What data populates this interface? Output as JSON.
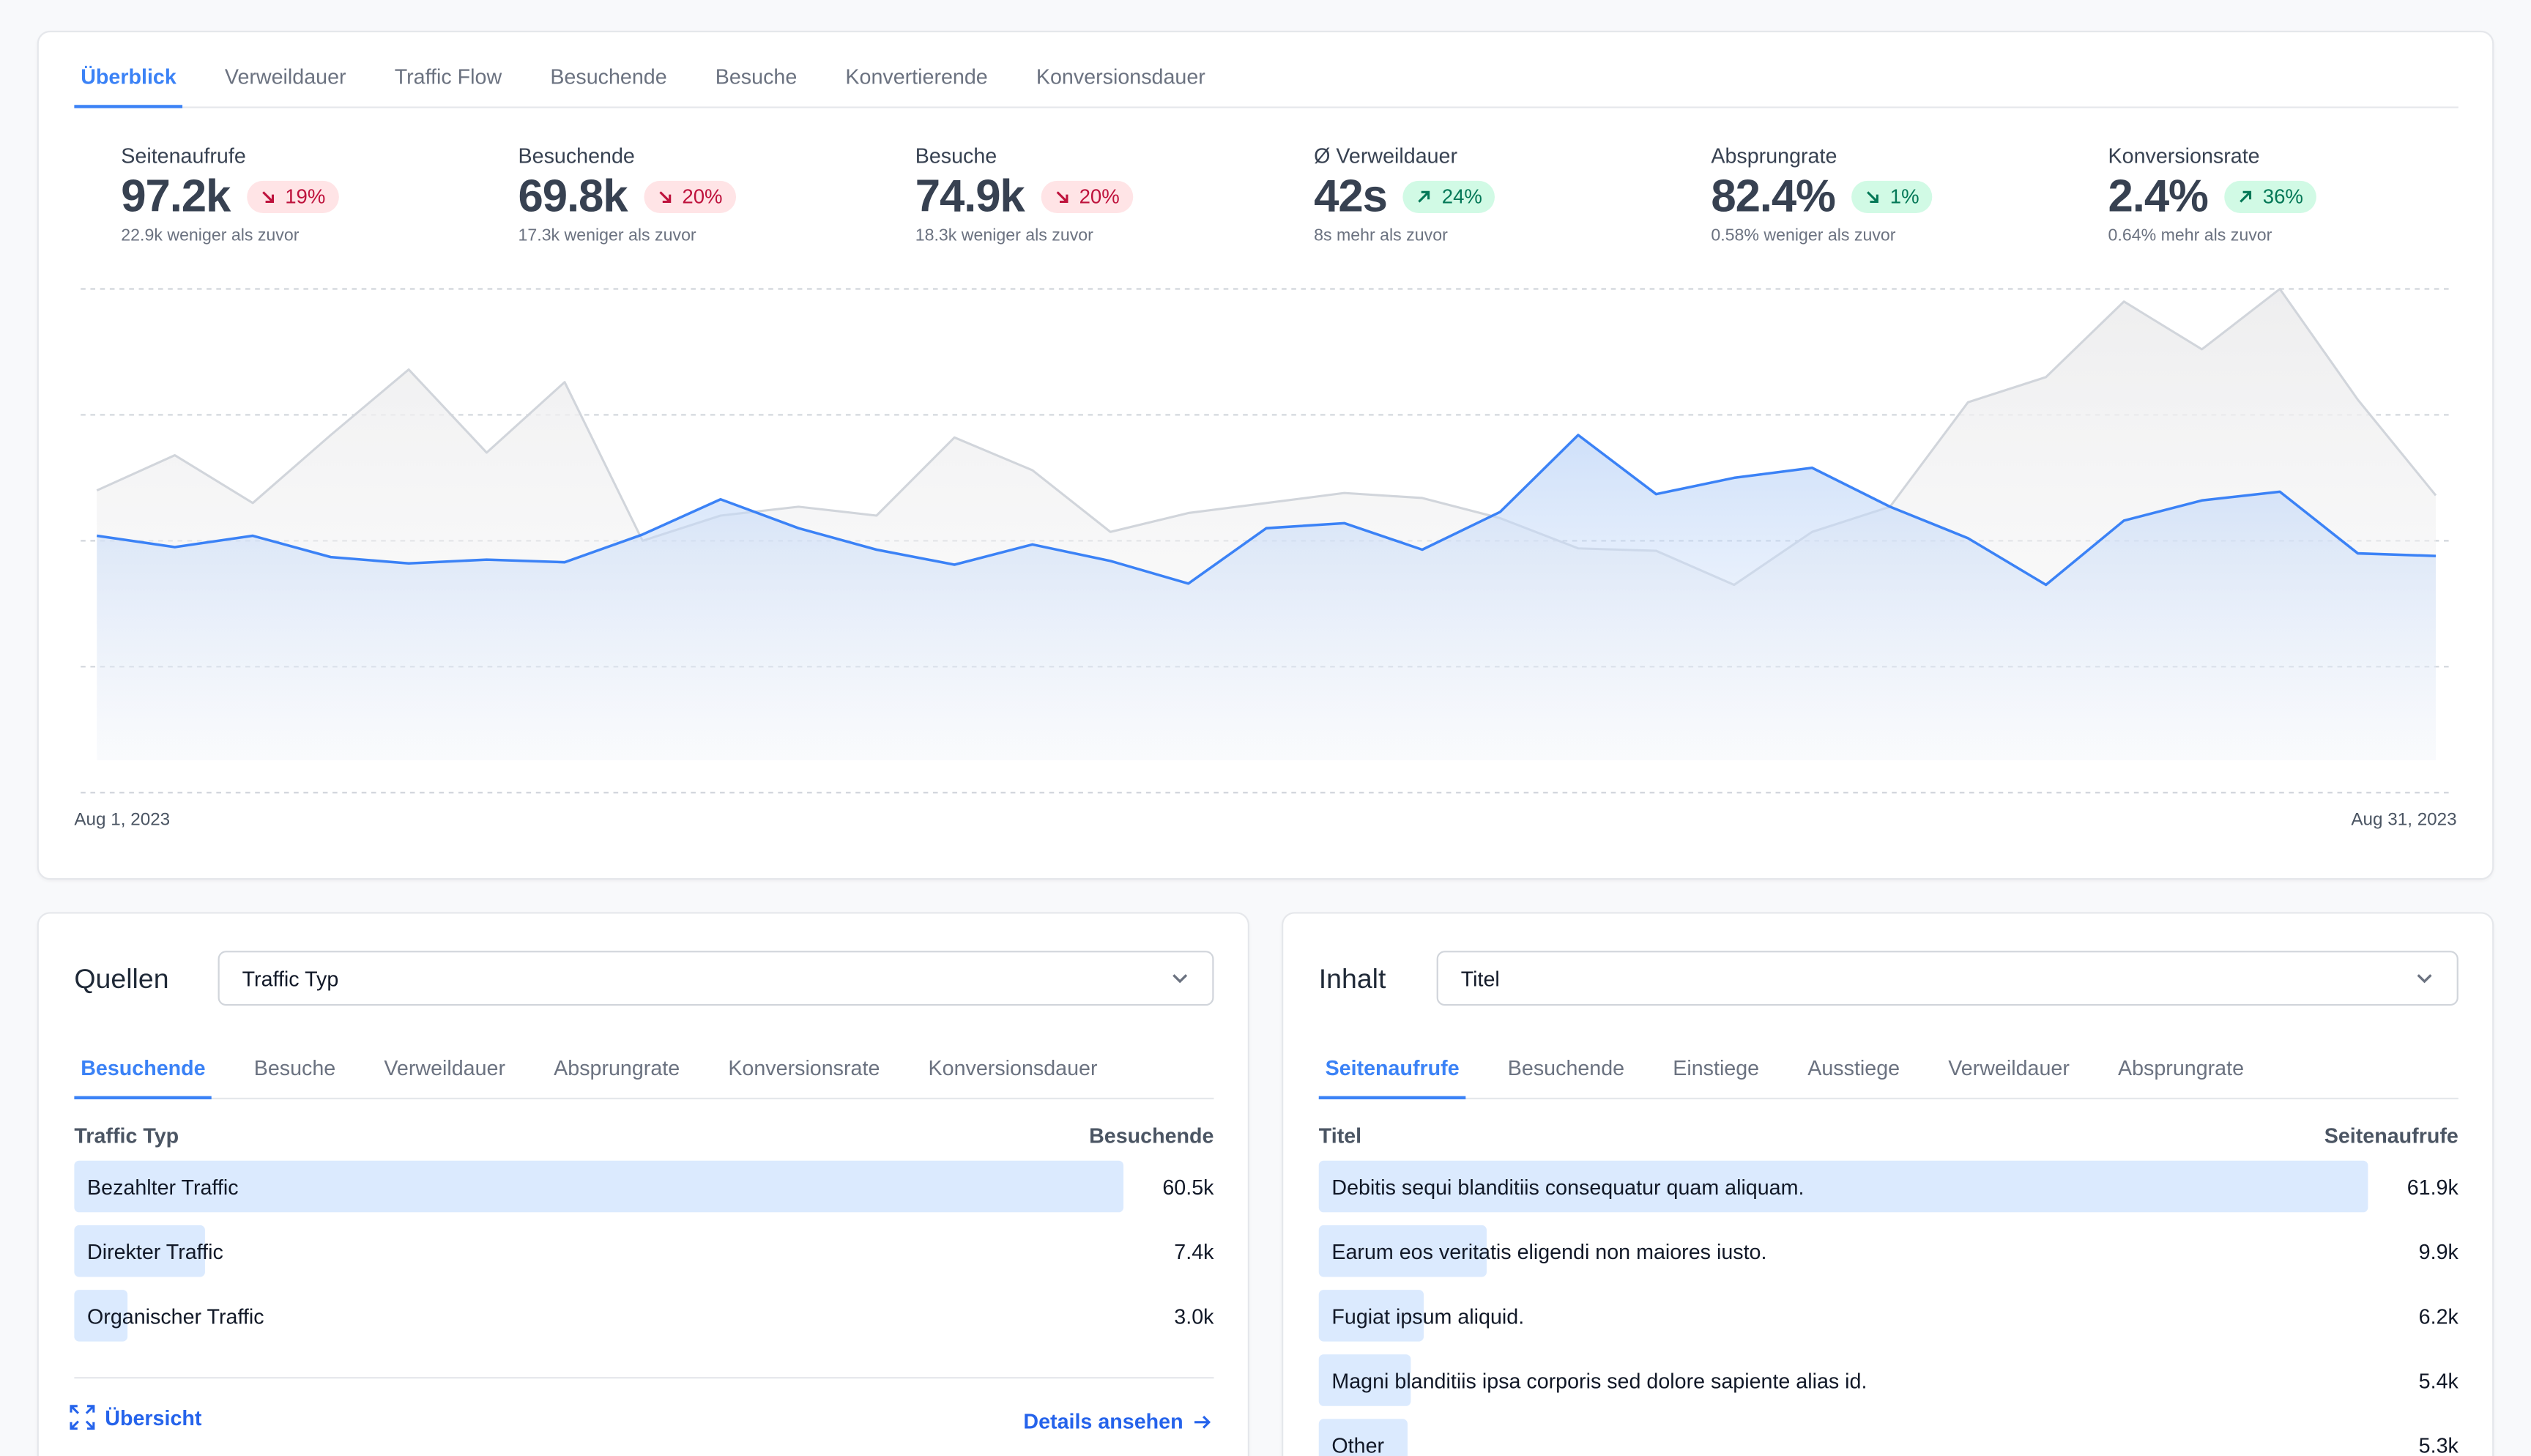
{
  "main": {
    "tabs": [
      "Überblick",
      "Verweildauer",
      "Traffic Flow",
      "Besuchende",
      "Besuche",
      "Konvertierende",
      "Konversionsdauer"
    ],
    "active_tab": 0,
    "kpis": [
      {
        "label": "Seitenaufrufe",
        "value": "97.2k",
        "change": "19%",
        "direction": "down",
        "sub": "22.9k weniger als zuvor"
      },
      {
        "label": "Besuchende",
        "value": "69.8k",
        "change": "20%",
        "direction": "down",
        "sub": "17.3k weniger als zuvor"
      },
      {
        "label": "Besuche",
        "value": "74.9k",
        "change": "20%",
        "direction": "down",
        "sub": "18.3k weniger als zuvor"
      },
      {
        "label": "Ø Verweildauer",
        "value": "42s",
        "change": "24%",
        "direction": "up",
        "sub": "8s mehr als zuvor"
      },
      {
        "label": "Absprungrate",
        "value": "82.4%",
        "change": "1%",
        "direction": "down-good",
        "sub": "0.58% weniger als zuvor"
      },
      {
        "label": "Konversionsrate",
        "value": "2.4%",
        "change": "36%",
        "direction": "up",
        "sub": "0.64% mehr als zuvor"
      }
    ],
    "date_start": "Aug 1, 2023",
    "date_end": "Aug 31, 2023"
  },
  "chart_data": {
    "type": "area",
    "x_range": [
      "Aug 1, 2023",
      "Aug 31, 2023"
    ],
    "y_range": [
      0,
      4
    ],
    "grid": true,
    "series": [
      {
        "color": "#3b82f6",
        "values": [
          2.04,
          1.95,
          2.04,
          1.87,
          1.82,
          1.85,
          1.83,
          2.05,
          2.33,
          2.1,
          1.93,
          1.81,
          1.97,
          1.84,
          1.66,
          2.1,
          2.14,
          1.93,
          2.23,
          2.84,
          2.37,
          2.5,
          2.58,
          2.27,
          2.02,
          1.65,
          2.16,
          2.32,
          2.39,
          1.9,
          1.88
        ]
      },
      {
        "color": "#d1d5db",
        "values": [
          2.4,
          2.68,
          2.3,
          2.84,
          3.36,
          2.7,
          3.26,
          2.0,
          2.2,
          2.27,
          2.2,
          2.82,
          2.56,
          2.07,
          2.22,
          2.3,
          2.38,
          2.34,
          2.18,
          1.94,
          1.92,
          1.65,
          2.07,
          2.27,
          3.1,
          3.3,
          3.9,
          3.52,
          4.0,
          3.12,
          2.36
        ]
      }
    ]
  },
  "sources": {
    "title": "Quellen",
    "select_value": "Traffic Typ",
    "tabs": [
      "Besuchende",
      "Besuche",
      "Verweildauer",
      "Absprungrate",
      "Konversionsrate",
      "Konversionsdauer"
    ],
    "col_left": "Traffic Typ",
    "col_right": "Besuchende",
    "rows": [
      {
        "label": "Bezahlter Traffic",
        "value": "60.5k",
        "fraction": 1.0
      },
      {
        "label": "Direkter Traffic",
        "value": "7.4k",
        "fraction": 0.124
      },
      {
        "label": "Organischer Traffic",
        "value": "3.0k",
        "fraction": 0.05
      }
    ],
    "overview_label": "Übersicht",
    "details_label": "Details ansehen"
  },
  "content": {
    "title": "Inhalt",
    "select_value": "Titel",
    "tabs": [
      "Seitenaufrufe",
      "Besuchende",
      "Einstiege",
      "Ausstiege",
      "Verweildauer",
      "Absprungrate"
    ],
    "col_left": "Titel",
    "col_right": "Seitenaufrufe",
    "rows": [
      {
        "label": "Debitis sequi blanditiis consequatur quam aliquam.",
        "value": "61.9k",
        "fraction": 1.0
      },
      {
        "label": "Earum eos veritatis eligendi non maiores iusto.",
        "value": "9.9k",
        "fraction": 0.16
      },
      {
        "label": "Fugiat ipsum aliquid.",
        "value": "6.2k",
        "fraction": 0.1
      },
      {
        "label": "Magni blanditiis ipsa corporis sed dolore sapiente alias id.",
        "value": "5.4k",
        "fraction": 0.087
      },
      {
        "label": "Other",
        "value": "5.3k",
        "fraction": 0.085
      }
    ]
  }
}
